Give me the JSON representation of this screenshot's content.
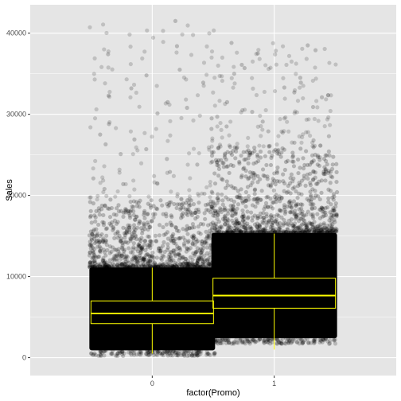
{
  "chart_data": {
    "type": "boxplot_jitter",
    "xlabel": "factor(Promo)",
    "ylabel": "Sales",
    "categories": [
      "0",
      "1"
    ],
    "ylim": [
      -2200,
      43500
    ],
    "yticks": [
      0,
      10000,
      20000,
      30000,
      40000
    ],
    "grid": true,
    "colors": {
      "panel_background": "#e5e5e5",
      "gridline": "#ffffff",
      "points": "#000000",
      "box": "#ffff00"
    },
    "boxes": [
      {
        "category": "0",
        "whisker_low": 500,
        "q1": 4200,
        "median": 5450,
        "q3": 7000,
        "whisker_high": 11100
      },
      {
        "category": "1",
        "whisker_low": 1000,
        "q1": 6100,
        "median": 7650,
        "q3": 9800,
        "whisker_high": 15300
      }
    ],
    "points_density": [
      {
        "category": "0",
        "dense_band": [
          900,
          19500
        ],
        "sparse_band": [
          19500,
          41500
        ]
      },
      {
        "category": "1",
        "dense_band": [
          2400,
          26000
        ],
        "sparse_band": [
          26000,
          38800
        ]
      }
    ],
    "outliers": [
      {
        "category": "0",
        "values": [
          41500,
          38400,
          37400,
          35500,
          34800,
          33900,
          33200,
          32300,
          31500,
          30800,
          30100,
          29500,
          28800,
          28200,
          27500,
          26900,
          26300,
          25700,
          25100,
          24500,
          23800,
          22900,
          22100,
          21400,
          20800,
          20200
        ]
      },
      {
        "category": "1",
        "values": [
          38800,
          38500,
          37900,
          37500,
          36100,
          35700,
          35000,
          34500,
          33900,
          33300,
          32700,
          32100,
          31500,
          30900,
          30300,
          29700,
          29100,
          28500,
          27900,
          27300,
          26800,
          26500
        ]
      }
    ]
  }
}
